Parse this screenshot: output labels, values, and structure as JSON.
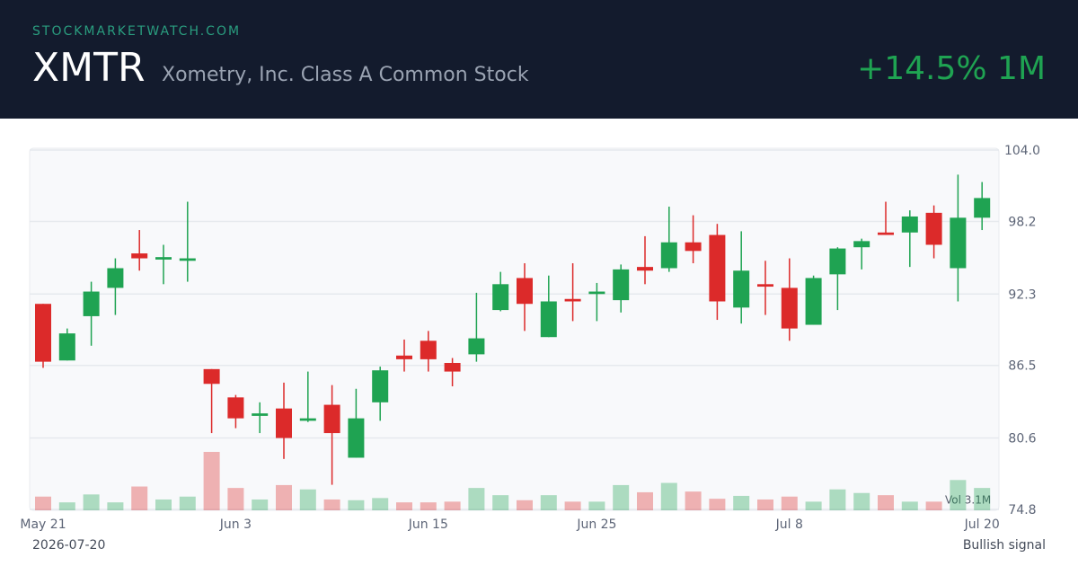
{
  "chart_data": {
    "type": "candlestick",
    "site": "STOCKMARKETWATCH.COM",
    "ticker": "XMTR",
    "title": "Xometry, Inc. Class A Common Stock",
    "change": "+14.5% 1M",
    "date": "2026-07-20",
    "signal": "Bullish signal",
    "volume_label": "Vol 3.1M",
    "up_color": "#1fa352",
    "down_color": "#dc2a2a",
    "categories": [
      "May 21",
      null,
      null,
      null,
      null,
      null,
      null,
      null,
      "Jun 3",
      null,
      null,
      null,
      null,
      null,
      null,
      null,
      "Jun 15",
      null,
      null,
      null,
      null,
      null,
      null,
      "Jun 25",
      null,
      null,
      null,
      null,
      null,
      null,
      null,
      "Jul 8",
      null,
      null,
      null,
      null,
      null,
      null,
      null,
      "Jul 20"
    ],
    "open": [
      91.5,
      86.9,
      90.5,
      92.8,
      95.6,
      95.1,
      95.0,
      86.2,
      83.9,
      82.4,
      83.0,
      82.0,
      83.3,
      79.0,
      83.5,
      87.3,
      88.5,
      86.7,
      87.4,
      91.0,
      93.6,
      88.8,
      91.9,
      92.3,
      91.8,
      94.5,
      94.4,
      96.5,
      97.1,
      91.2,
      93.1,
      92.8,
      89.8,
      93.9,
      96.1,
      97.3,
      97.3,
      98.9,
      94.4,
      98.5
    ],
    "high": [
      91.5,
      89.5,
      93.3,
      95.2,
      97.5,
      96.3,
      99.8,
      86.2,
      84.1,
      83.5,
      85.1,
      86.0,
      84.9,
      84.6,
      86.4,
      88.6,
      89.3,
      87.1,
      92.4,
      94.1,
      94.8,
      93.8,
      94.8,
      93.2,
      94.7,
      97.0,
      99.4,
      98.7,
      98.0,
      97.4,
      95.0,
      95.2,
      93.8,
      96.1,
      96.8,
      99.8,
      99.1,
      99.5,
      102.0,
      101.4
    ],
    "low": [
      86.3,
      86.9,
      88.1,
      90.6,
      94.2,
      93.1,
      93.3,
      81.0,
      81.4,
      81.0,
      78.9,
      81.9,
      76.8,
      79.0,
      82.0,
      86.0,
      86.0,
      84.8,
      86.8,
      90.9,
      89.3,
      88.8,
      90.1,
      90.1,
      90.8,
      93.1,
      94.1,
      94.8,
      90.2,
      89.9,
      90.6,
      88.5,
      89.8,
      91.0,
      94.3,
      97.1,
      94.5,
      95.2,
      91.7,
      97.5
    ],
    "close": [
      86.8,
      89.1,
      92.5,
      94.4,
      95.2,
      95.3,
      95.2,
      85.0,
      82.2,
      82.6,
      80.6,
      82.2,
      81.0,
      82.2,
      86.1,
      87.0,
      87.0,
      86.0,
      88.7,
      93.1,
      91.5,
      91.7,
      91.7,
      92.5,
      94.3,
      94.2,
      96.5,
      95.8,
      91.7,
      94.2,
      92.9,
      89.5,
      93.6,
      96.0,
      96.6,
      97.1,
      98.6,
      96.3,
      98.5,
      100.1
    ],
    "volume": [
      1.9,
      1.1,
      2.2,
      1.1,
      3.3,
      1.5,
      1.9,
      8.1,
      3.1,
      1.5,
      3.5,
      2.9,
      1.5,
      1.4,
      1.7,
      1.1,
      1.1,
      1.2,
      3.1,
      2.1,
      1.4,
      2.1,
      1.2,
      1.2,
      3.5,
      2.5,
      3.8,
      2.6,
      1.6,
      2.0,
      1.5,
      1.9,
      1.2,
      2.9,
      2.4,
      2.1,
      1.2,
      1.2,
      4.2,
      3.1
    ],
    "ylim": [
      74.8,
      104
    ],
    "yticks": [
      74.8,
      80.6,
      86.5,
      92.3,
      98.2,
      {
        "value": 104,
        "label": "104.0"
      }
    ],
    "grid": true
  }
}
